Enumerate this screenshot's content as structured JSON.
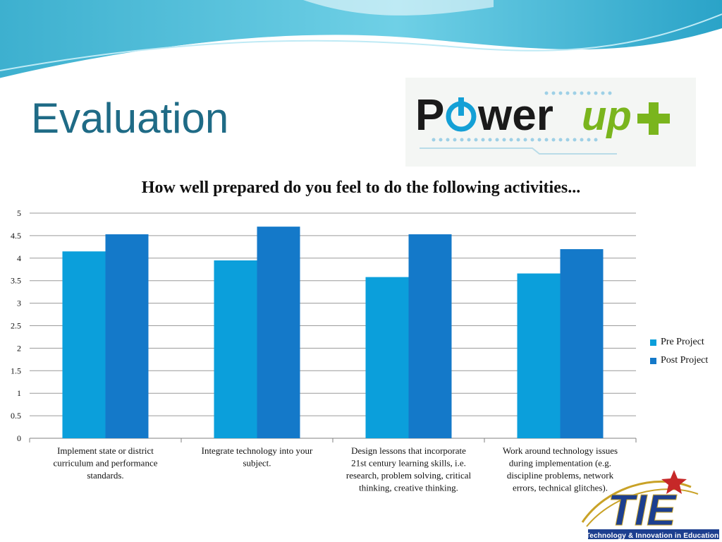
{
  "slide": {
    "title": "Evaluation"
  },
  "logo": {
    "word": "Power",
    "accent": "up+",
    "word_color": "#1a1a1a",
    "accent_color": "#7ab51d",
    "power_icon": "power-icon"
  },
  "tie_logo": {
    "letters": "TIE",
    "tagline": "Technology & Innovation in Education",
    "color": "#1d3f8f",
    "star_color": "#c62828"
  },
  "chart_data": {
    "type": "bar",
    "title": "How well prepared do you feel to do the following activities...",
    "xlabel": "",
    "ylabel": "",
    "categories": [
      [
        "Implement state or district",
        "curriculum and performance",
        "standards."
      ],
      [
        "Integrate technology into your",
        "subject."
      ],
      [
        "Design lessons that incorporate",
        "21st century learning skills, i.e.",
        "research, problem solving, critical",
        "thinking, creative thinking."
      ],
      [
        "Work around technology issues",
        "during implementation (e.g.",
        "discipline problems, network",
        "errors, technical glitches)."
      ]
    ],
    "series": [
      {
        "name": "Pre Project",
        "color": "#0b9fdb",
        "values": [
          4.15,
          3.95,
          3.58,
          3.66
        ]
      },
      {
        "name": "Post Project",
        "color": "#1479c9",
        "values": [
          4.53,
          4.7,
          4.53,
          4.2
        ]
      }
    ],
    "ylim": [
      0,
      5
    ],
    "yticks": [
      "0",
      "0.5",
      "1",
      "1.5",
      "2",
      "2.5",
      "3",
      "3.5",
      "4",
      "4.5",
      "5"
    ],
    "grid": true,
    "legend_position": "right"
  }
}
